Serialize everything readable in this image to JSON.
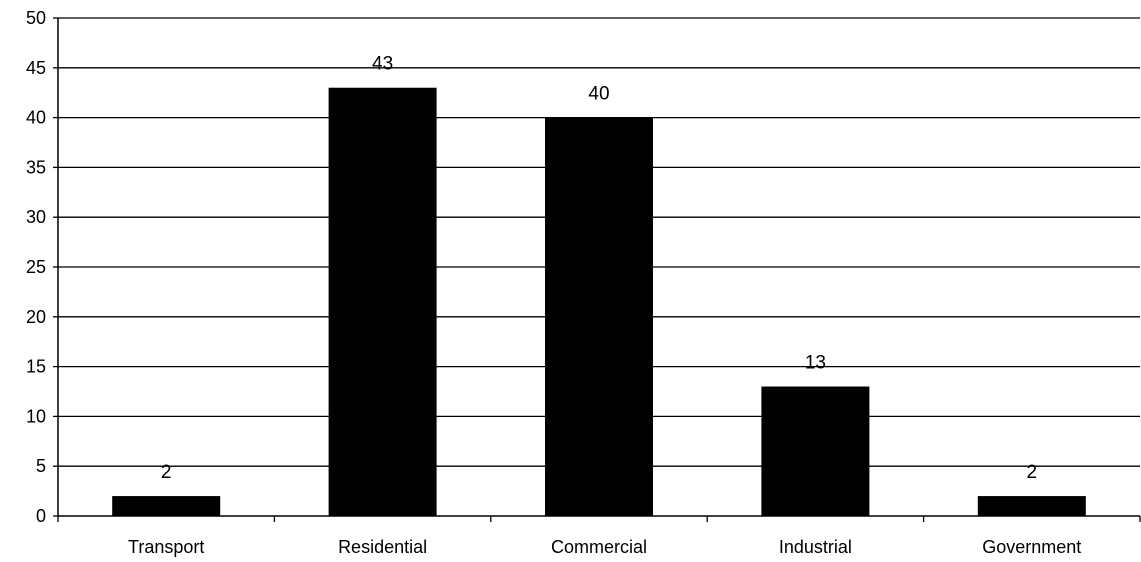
{
  "chart_data": {
    "type": "bar",
    "title": "",
    "xlabel": "",
    "ylabel": "",
    "categories": [
      "Transport",
      "Residential",
      "Commercial",
      "Industrial",
      "Government"
    ],
    "values": [
      2,
      43,
      40,
      13,
      2
    ],
    "data_labels": [
      "2",
      "43",
      "40",
      "13",
      "2"
    ],
    "ylim": [
      0,
      50
    ],
    "yticks": [
      0,
      5,
      10,
      15,
      20,
      25,
      30,
      35,
      40,
      45,
      50
    ],
    "ytick_labels": [
      "0",
      "5",
      "10",
      "15",
      "20",
      "25",
      "30",
      "35",
      "40",
      "45",
      "50"
    ],
    "grid": true,
    "legend": "none",
    "bar_color": "#000000",
    "grid_color": "#000000"
  }
}
